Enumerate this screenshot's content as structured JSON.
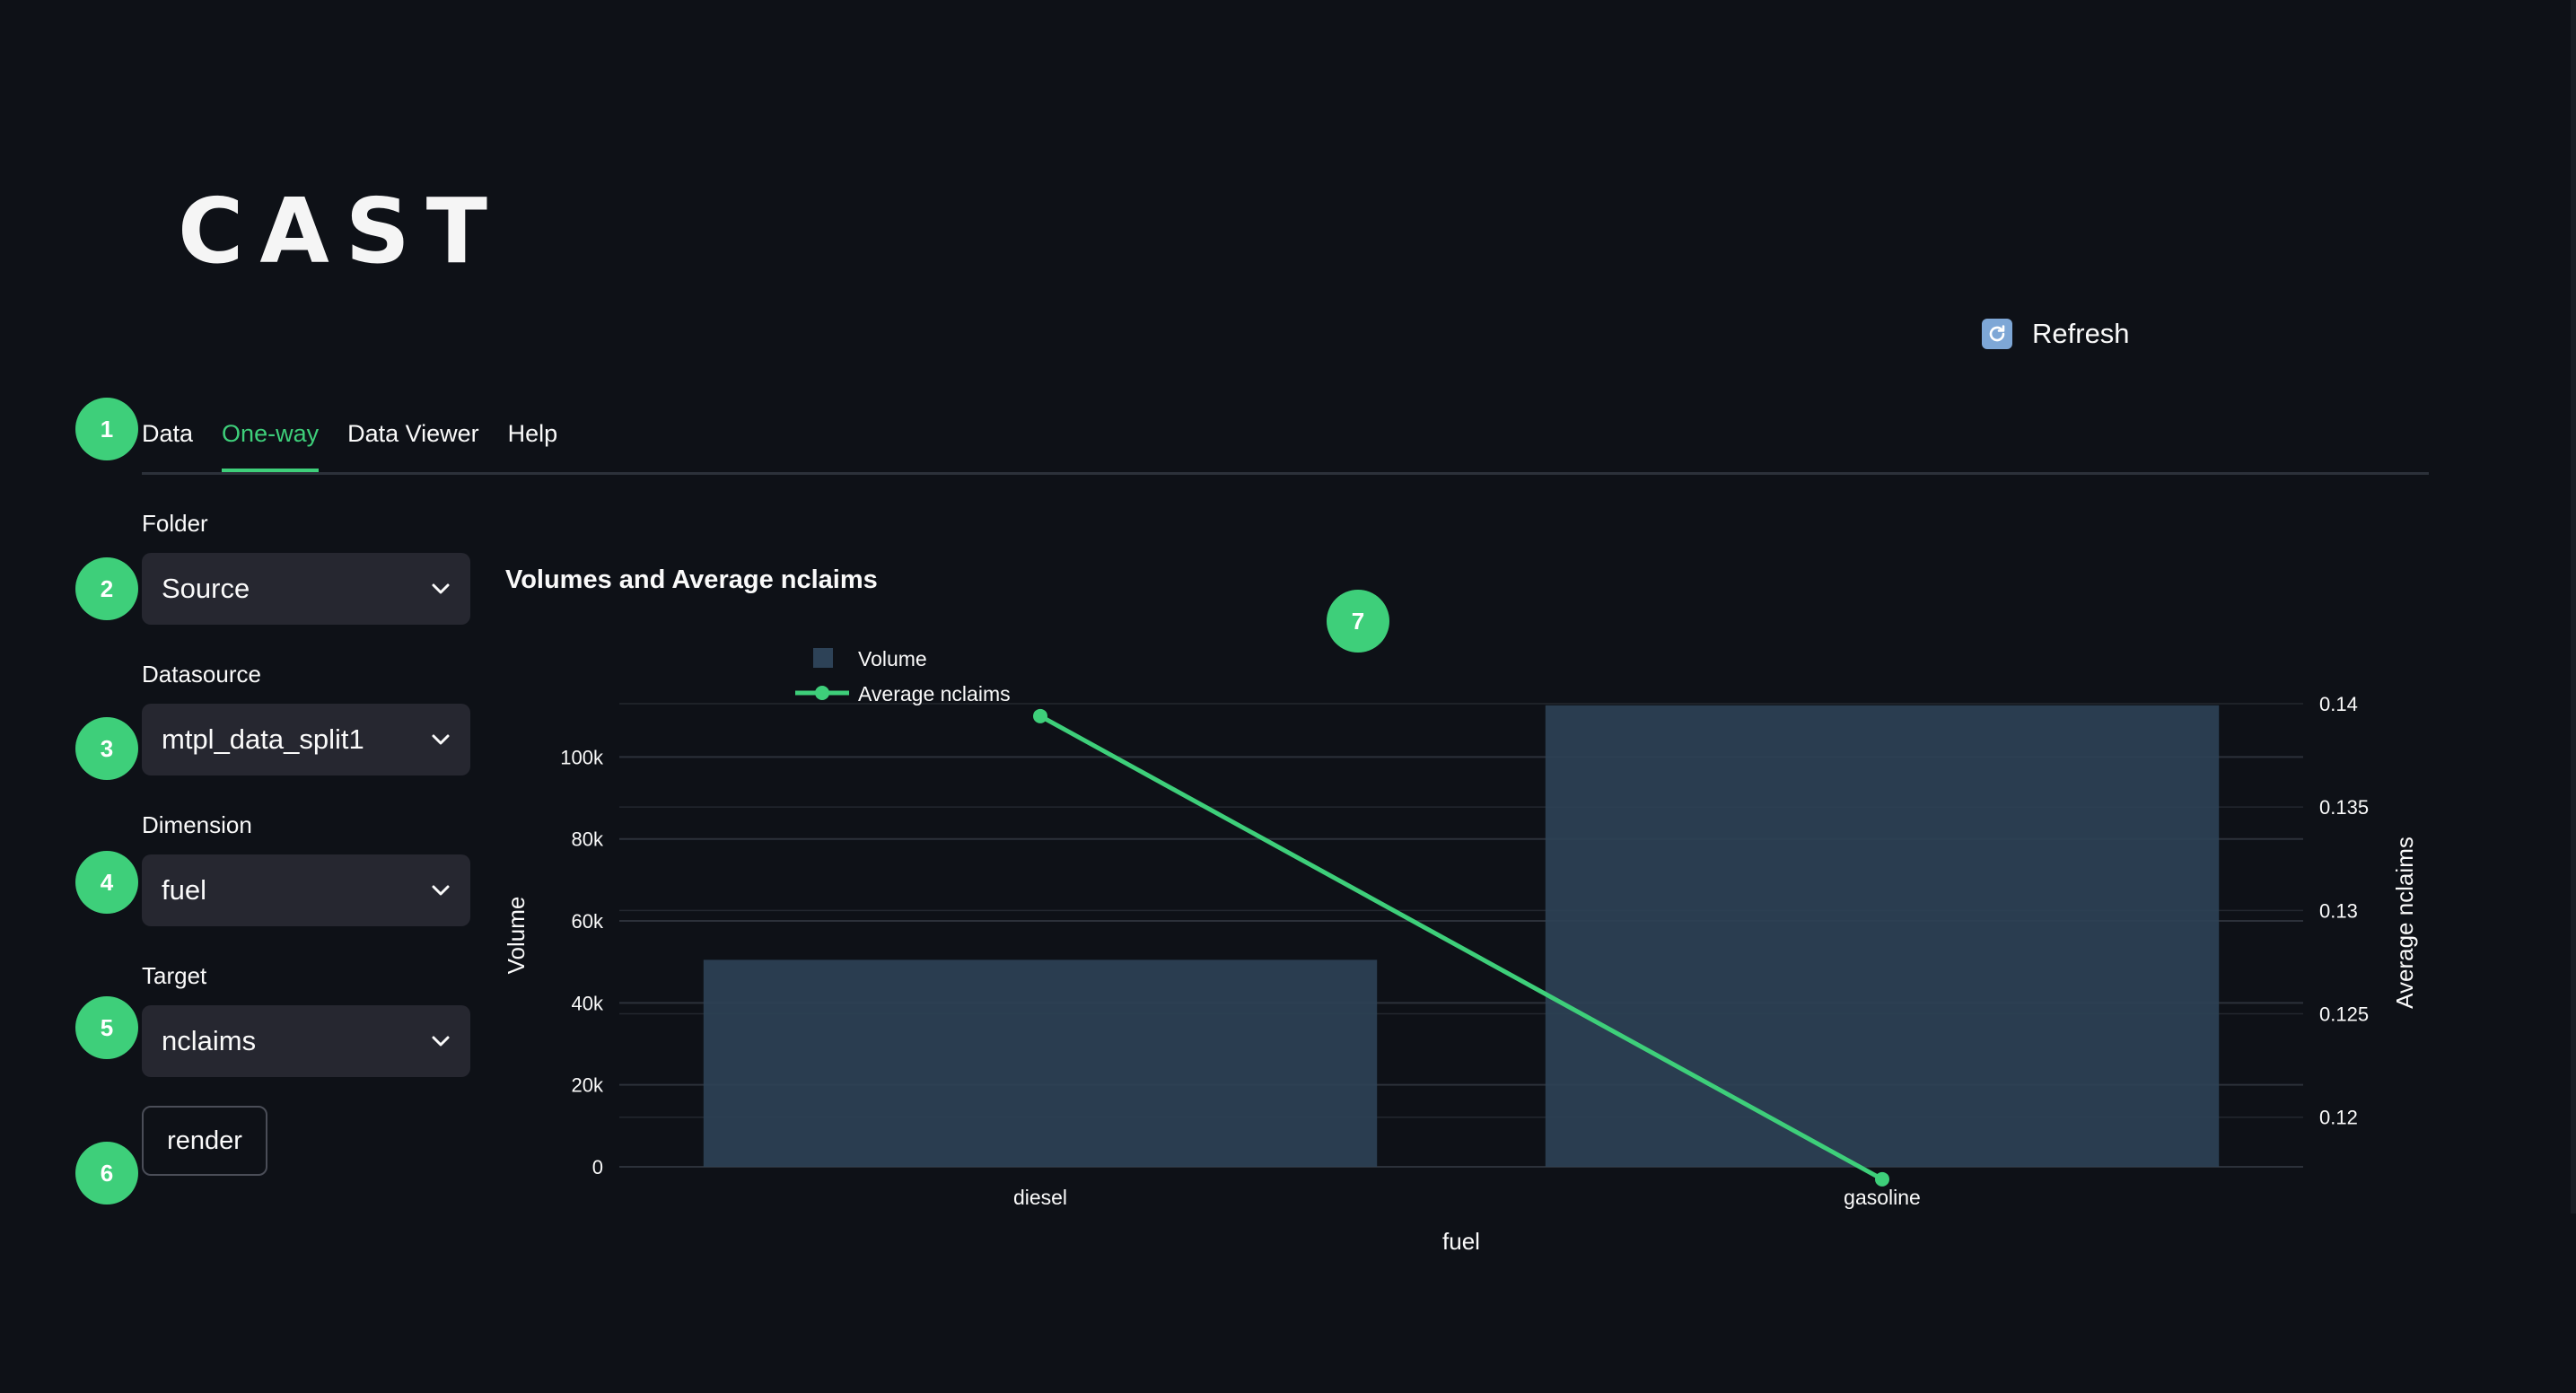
{
  "app": {
    "logo": "CAST",
    "refresh_label": "Refresh"
  },
  "badges": [
    "1",
    "2",
    "3",
    "4",
    "5",
    "6",
    "7"
  ],
  "tabs": [
    {
      "label": "Data",
      "active": false
    },
    {
      "label": "One-way",
      "active": true
    },
    {
      "label": "Data Viewer",
      "active": false
    },
    {
      "label": "Help",
      "active": false
    }
  ],
  "form": {
    "folder": {
      "label": "Folder",
      "value": "Source"
    },
    "datasource": {
      "label": "Datasource",
      "value": "mtpl_data_split1"
    },
    "dimension": {
      "label": "Dimension",
      "value": "fuel"
    },
    "target": {
      "label": "Target",
      "value": "nclaims"
    },
    "render_label": "render"
  },
  "colors": {
    "accent": "#3ecf7a",
    "background": "#0e1117",
    "select_bg": "#262730",
    "bar": "#2d4257",
    "line": "#3ecf7a",
    "grid": "#2c313a"
  },
  "icons": {
    "refresh": "refresh-icon",
    "select_arrow": "chevron-down-icon"
  },
  "chart_data": {
    "type": "bar",
    "title": "Volumes and Average nclaims",
    "categories": [
      "diesel",
      "gasoline"
    ],
    "xlabel": "fuel",
    "ylabel": "Volume",
    "y2label": "Average nclaims",
    "ylim": [
      0,
      113000
    ],
    "y2lim": [
      0.1176,
      0.14
    ],
    "y_ticks": [
      0,
      20000,
      40000,
      60000,
      80000,
      100000
    ],
    "y_tick_labels": [
      "0",
      "20k",
      "40k",
      "60k",
      "80k",
      "100k"
    ],
    "y2_ticks": [
      0.12,
      0.125,
      0.13,
      0.135,
      0.14
    ],
    "y2_tick_labels": [
      "0.12",
      "0.125",
      "0.13",
      "0.135",
      "0.14"
    ],
    "grid": true,
    "legend_placement": "top-left",
    "series": [
      {
        "name": "Volume",
        "type": "bar",
        "axis": "left",
        "values": [
          50500,
          112600
        ]
      },
      {
        "name": "Average nclaims",
        "type": "line",
        "axis": "right",
        "values": [
          0.1394,
          0.117
        ]
      }
    ]
  }
}
